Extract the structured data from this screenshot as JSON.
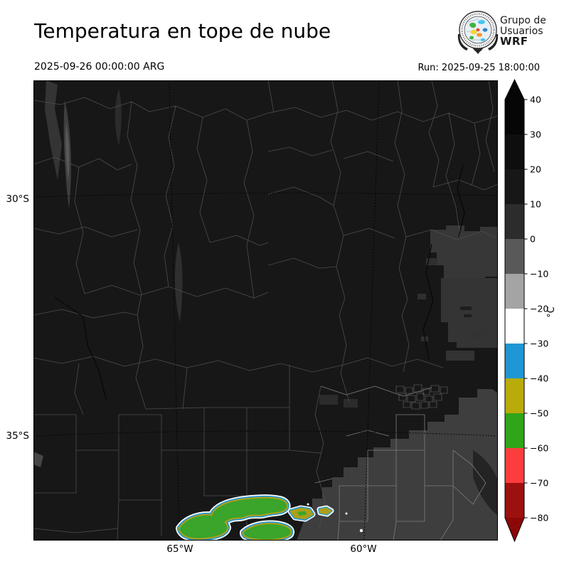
{
  "header": {
    "title": "Temperatura en tope de nube",
    "valid_time": "2025-09-26 00:00:00 ARG",
    "run_label": "Run: 2025-09-25 18:00:00"
  },
  "logo": {
    "line1": "Grupo de",
    "line2": "Usuarios",
    "line3": "WRF"
  },
  "axes": {
    "x_tick_labels": [
      "65°W",
      "60°W"
    ],
    "y_tick_labels": [
      "30°S",
      "35°S"
    ]
  },
  "colorbar": {
    "unit": "°C",
    "tick_labels": [
      "40",
      "30",
      "20",
      "10",
      "0",
      "−10",
      "−20",
      "−30",
      "−40",
      "−50",
      "−60",
      "−70",
      "−80"
    ],
    "band_colors_top_to_bottom": [
      "#060606",
      "#0e0e0e",
      "#171717",
      "#2c2c2c",
      "#595959",
      "#a4a4a4",
      "#ffffff",
      "#1f97d4",
      "#b9ab0a",
      "#2fa51a",
      "#fd3d3d",
      "#9c1010"
    ],
    "extend_over_color": "#060606",
    "extend_under_color": "#8c0808"
  },
  "chart_data": {
    "type": "heatmap",
    "title": "Temperatura en tope de nube",
    "valid_time": "2025-09-26 00:00:00 ARG",
    "run": "2025-09-25 18:00:00",
    "units": "°C",
    "value_range": [
      -80,
      40
    ],
    "tick_step": 10,
    "x_ticks": [
      "65°W",
      "60°W"
    ],
    "y_ticks": [
      "30°S",
      "35°S"
    ],
    "features": [
      {
        "label": "clear sky / warm ground over most of the domain",
        "temp_c": "10 to 40",
        "appearance": "near-black field with gray department boundaries"
      },
      {
        "label": "warm low cloud shield over the southeast (Buenos Aires area)",
        "temp_c": "0 to 10",
        "appearance": "medium-gray region, lower right"
      },
      {
        "label": "scattered mid clouds along the eastern edge",
        "temp_c": "-10 to 10",
        "appearance": "gray patches at right edge"
      },
      {
        "label": "deep convection cells near 64–62°W at the southern map edge",
        "temp_c": "-40 to -60",
        "appearance": "green cores ringed by olive, blue and white"
      }
    ]
  }
}
